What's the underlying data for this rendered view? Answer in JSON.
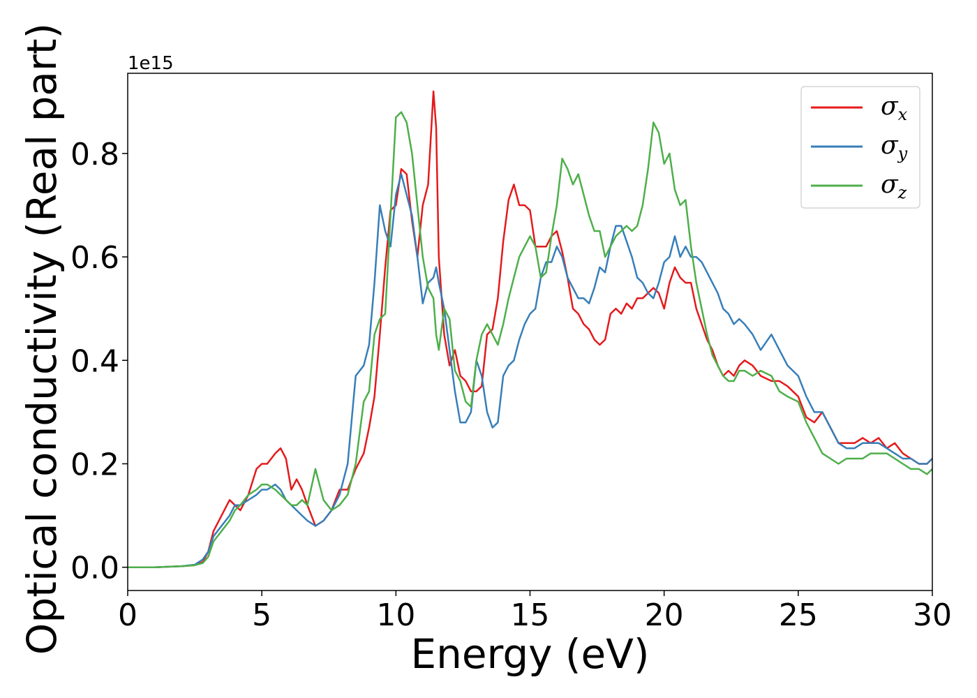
{
  "chart_data": {
    "type": "line",
    "xlabel": "Energy (eV)",
    "ylabel": "Optical conductivity (Real part)",
    "y_offset_text": "1e15",
    "xlim": [
      0,
      30
    ],
    "ylim": [
      -0.045,
      0.955
    ],
    "x_ticks": [
      0,
      5,
      10,
      15,
      20,
      25,
      30
    ],
    "x_tick_labels": [
      "0",
      "5",
      "10",
      "15",
      "20",
      "25",
      "30"
    ],
    "y_ticks": [
      0.0,
      0.2,
      0.4,
      0.6,
      0.8
    ],
    "y_tick_labels": [
      "0.0",
      "0.2",
      "0.4",
      "0.6",
      "0.8"
    ],
    "grid": false,
    "legend_position": "top-right",
    "series": [
      {
        "name": "σx",
        "symbol": "σ",
        "subscript": "x",
        "color": "#e41a1c",
        "x": [
          0,
          1,
          2,
          2.5,
          2.8,
          3.0,
          3.2,
          3.5,
          3.8,
          4.0,
          4.2,
          4.5,
          4.8,
          5.0,
          5.2,
          5.5,
          5.7,
          5.9,
          6.1,
          6.3,
          6.5,
          6.7,
          7.0,
          7.3,
          7.6,
          7.9,
          8.2,
          8.5,
          8.8,
          9.0,
          9.2,
          9.4,
          9.6,
          9.8,
          10.0,
          10.2,
          10.4,
          10.6,
          10.8,
          11.0,
          11.2,
          11.4,
          11.5,
          11.6,
          11.8,
          12.0,
          12.2,
          12.4,
          12.6,
          12.8,
          13.0,
          13.2,
          13.4,
          13.6,
          13.8,
          14.0,
          14.2,
          14.4,
          14.6,
          14.8,
          15.0,
          15.2,
          15.4,
          15.6,
          15.8,
          16.0,
          16.2,
          16.4,
          16.6,
          16.8,
          17.0,
          17.2,
          17.4,
          17.6,
          17.8,
          18.0,
          18.2,
          18.4,
          18.6,
          18.8,
          19.0,
          19.2,
          19.4,
          19.6,
          19.8,
          20.0,
          20.2,
          20.4,
          20.6,
          20.8,
          21.0,
          21.2,
          21.4,
          21.6,
          21.8,
          22.0,
          22.2,
          22.4,
          22.6,
          22.8,
          23.0,
          23.3,
          23.6,
          24.0,
          24.3,
          24.6,
          25.0,
          25.3,
          25.6,
          25.9,
          26.2,
          26.5,
          26.8,
          27.1,
          27.4,
          27.7,
          28.0,
          28.3,
          28.6,
          28.9,
          29.2,
          29.5,
          29.8,
          30.0
        ],
        "y": [
          0,
          0,
          0.002,
          0.004,
          0.01,
          0.03,
          0.07,
          0.1,
          0.13,
          0.12,
          0.11,
          0.14,
          0.19,
          0.2,
          0.2,
          0.22,
          0.23,
          0.21,
          0.15,
          0.17,
          0.15,
          0.12,
          0.08,
          0.09,
          0.11,
          0.15,
          0.15,
          0.19,
          0.22,
          0.27,
          0.33,
          0.45,
          0.58,
          0.69,
          0.7,
          0.77,
          0.76,
          0.67,
          0.6,
          0.7,
          0.74,
          0.92,
          0.85,
          0.6,
          0.45,
          0.39,
          0.42,
          0.37,
          0.36,
          0.34,
          0.34,
          0.35,
          0.45,
          0.46,
          0.52,
          0.63,
          0.71,
          0.74,
          0.7,
          0.7,
          0.69,
          0.62,
          0.62,
          0.62,
          0.64,
          0.65,
          0.61,
          0.56,
          0.5,
          0.49,
          0.47,
          0.46,
          0.44,
          0.43,
          0.44,
          0.49,
          0.5,
          0.49,
          0.51,
          0.5,
          0.52,
          0.52,
          0.53,
          0.54,
          0.53,
          0.5,
          0.55,
          0.58,
          0.56,
          0.55,
          0.55,
          0.5,
          0.47,
          0.44,
          0.42,
          0.39,
          0.37,
          0.38,
          0.37,
          0.39,
          0.4,
          0.39,
          0.37,
          0.36,
          0.36,
          0.35,
          0.33,
          0.29,
          0.28,
          0.3,
          0.27,
          0.24,
          0.24,
          0.24,
          0.25,
          0.24,
          0.25,
          0.23,
          0.24,
          0.22,
          0.21,
          0.2,
          0.2,
          0.21
        ]
      },
      {
        "name": "σy",
        "symbol": "σ",
        "subscript": "y",
        "color": "#377eb8",
        "x": [
          0,
          1,
          2,
          2.5,
          2.8,
          3.0,
          3.2,
          3.5,
          3.8,
          4.0,
          4.2,
          4.5,
          4.8,
          5.0,
          5.2,
          5.5,
          5.7,
          5.9,
          6.1,
          6.3,
          6.5,
          6.7,
          7.0,
          7.3,
          7.6,
          7.9,
          8.2,
          8.5,
          8.8,
          9.0,
          9.2,
          9.4,
          9.6,
          9.8,
          10.0,
          10.2,
          10.4,
          10.6,
          10.8,
          11.0,
          11.2,
          11.4,
          11.5,
          11.6,
          11.8,
          12.0,
          12.2,
          12.4,
          12.6,
          12.8,
          13.0,
          13.2,
          13.4,
          13.6,
          13.8,
          14.0,
          14.2,
          14.4,
          14.6,
          14.8,
          15.0,
          15.2,
          15.4,
          15.6,
          15.8,
          16.0,
          16.2,
          16.4,
          16.6,
          16.8,
          17.0,
          17.2,
          17.4,
          17.6,
          17.8,
          18.0,
          18.2,
          18.4,
          18.6,
          18.8,
          19.0,
          19.2,
          19.4,
          19.6,
          19.8,
          20.0,
          20.2,
          20.4,
          20.6,
          20.8,
          21.0,
          21.2,
          21.4,
          21.6,
          21.8,
          22.0,
          22.2,
          22.4,
          22.6,
          22.8,
          23.0,
          23.3,
          23.6,
          24.0,
          24.3,
          24.6,
          25.0,
          25.3,
          25.6,
          25.9,
          26.2,
          26.5,
          26.8,
          27.1,
          27.4,
          27.7,
          28.0,
          28.3,
          28.6,
          28.9,
          29.2,
          29.5,
          29.8,
          30.0
        ],
        "y": [
          0,
          0,
          0.002,
          0.005,
          0.015,
          0.03,
          0.06,
          0.08,
          0.1,
          0.12,
          0.12,
          0.13,
          0.14,
          0.15,
          0.15,
          0.16,
          0.15,
          0.13,
          0.12,
          0.11,
          0.1,
          0.09,
          0.08,
          0.09,
          0.11,
          0.14,
          0.2,
          0.37,
          0.39,
          0.43,
          0.55,
          0.7,
          0.65,
          0.62,
          0.72,
          0.76,
          0.72,
          0.68,
          0.6,
          0.51,
          0.55,
          0.56,
          0.58,
          0.55,
          0.5,
          0.42,
          0.34,
          0.28,
          0.28,
          0.3,
          0.4,
          0.37,
          0.3,
          0.27,
          0.28,
          0.37,
          0.39,
          0.4,
          0.44,
          0.47,
          0.49,
          0.5,
          0.56,
          0.59,
          0.59,
          0.62,
          0.6,
          0.56,
          0.54,
          0.52,
          0.52,
          0.51,
          0.54,
          0.58,
          0.57,
          0.62,
          0.66,
          0.66,
          0.63,
          0.6,
          0.56,
          0.55,
          0.53,
          0.52,
          0.55,
          0.59,
          0.6,
          0.64,
          0.6,
          0.62,
          0.6,
          0.6,
          0.59,
          0.57,
          0.55,
          0.53,
          0.5,
          0.49,
          0.47,
          0.48,
          0.47,
          0.45,
          0.42,
          0.45,
          0.42,
          0.39,
          0.37,
          0.33,
          0.3,
          0.3,
          0.27,
          0.24,
          0.23,
          0.23,
          0.24,
          0.24,
          0.24,
          0.23,
          0.22,
          0.21,
          0.21,
          0.2,
          0.2,
          0.21
        ]
      },
      {
        "name": "σz",
        "symbol": "σ",
        "subscript": "z",
        "color": "#4daf4a",
        "x": [
          0,
          1,
          2,
          2.5,
          2.8,
          3.0,
          3.2,
          3.5,
          3.8,
          4.0,
          4.2,
          4.5,
          4.8,
          5.0,
          5.2,
          5.5,
          5.7,
          5.9,
          6.1,
          6.3,
          6.5,
          6.7,
          7.0,
          7.3,
          7.6,
          7.9,
          8.2,
          8.5,
          8.8,
          9.0,
          9.2,
          9.4,
          9.6,
          9.8,
          10.0,
          10.2,
          10.4,
          10.6,
          10.8,
          11.0,
          11.2,
          11.4,
          11.5,
          11.6,
          11.8,
          12.0,
          12.2,
          12.4,
          12.6,
          12.8,
          13.0,
          13.2,
          13.4,
          13.6,
          13.8,
          14.0,
          14.2,
          14.4,
          14.6,
          14.8,
          15.0,
          15.2,
          15.4,
          15.6,
          15.8,
          16.0,
          16.2,
          16.4,
          16.6,
          16.8,
          17.0,
          17.2,
          17.4,
          17.6,
          17.8,
          18.0,
          18.2,
          18.4,
          18.6,
          18.8,
          19.0,
          19.2,
          19.4,
          19.6,
          19.8,
          20.0,
          20.2,
          20.4,
          20.6,
          20.8,
          21.0,
          21.2,
          21.4,
          21.6,
          21.8,
          22.0,
          22.2,
          22.4,
          22.6,
          22.8,
          23.0,
          23.3,
          23.6,
          24.0,
          24.3,
          24.6,
          25.0,
          25.3,
          25.6,
          25.9,
          26.2,
          26.5,
          26.8,
          27.1,
          27.4,
          27.7,
          28.0,
          28.3,
          28.6,
          28.9,
          29.2,
          29.5,
          29.8,
          30.0
        ],
        "y": [
          0,
          0,
          0.002,
          0.004,
          0.008,
          0.02,
          0.05,
          0.07,
          0.09,
          0.11,
          0.12,
          0.14,
          0.15,
          0.16,
          0.16,
          0.15,
          0.14,
          0.13,
          0.12,
          0.12,
          0.13,
          0.12,
          0.19,
          0.13,
          0.11,
          0.12,
          0.14,
          0.2,
          0.32,
          0.34,
          0.45,
          0.48,
          0.49,
          0.68,
          0.87,
          0.88,
          0.86,
          0.8,
          0.7,
          0.6,
          0.54,
          0.52,
          0.45,
          0.42,
          0.5,
          0.48,
          0.38,
          0.36,
          0.32,
          0.31,
          0.4,
          0.45,
          0.47,
          0.45,
          0.43,
          0.47,
          0.52,
          0.56,
          0.6,
          0.62,
          0.64,
          0.62,
          0.56,
          0.57,
          0.64,
          0.7,
          0.79,
          0.77,
          0.74,
          0.76,
          0.72,
          0.68,
          0.65,
          0.65,
          0.6,
          0.62,
          0.64,
          0.65,
          0.66,
          0.65,
          0.66,
          0.7,
          0.77,
          0.86,
          0.84,
          0.78,
          0.8,
          0.73,
          0.7,
          0.71,
          0.62,
          0.55,
          0.5,
          0.45,
          0.41,
          0.39,
          0.37,
          0.36,
          0.36,
          0.38,
          0.38,
          0.37,
          0.38,
          0.37,
          0.34,
          0.33,
          0.32,
          0.28,
          0.25,
          0.22,
          0.21,
          0.2,
          0.21,
          0.21,
          0.21,
          0.22,
          0.22,
          0.22,
          0.21,
          0.2,
          0.19,
          0.19,
          0.18,
          0.19
        ]
      }
    ]
  }
}
